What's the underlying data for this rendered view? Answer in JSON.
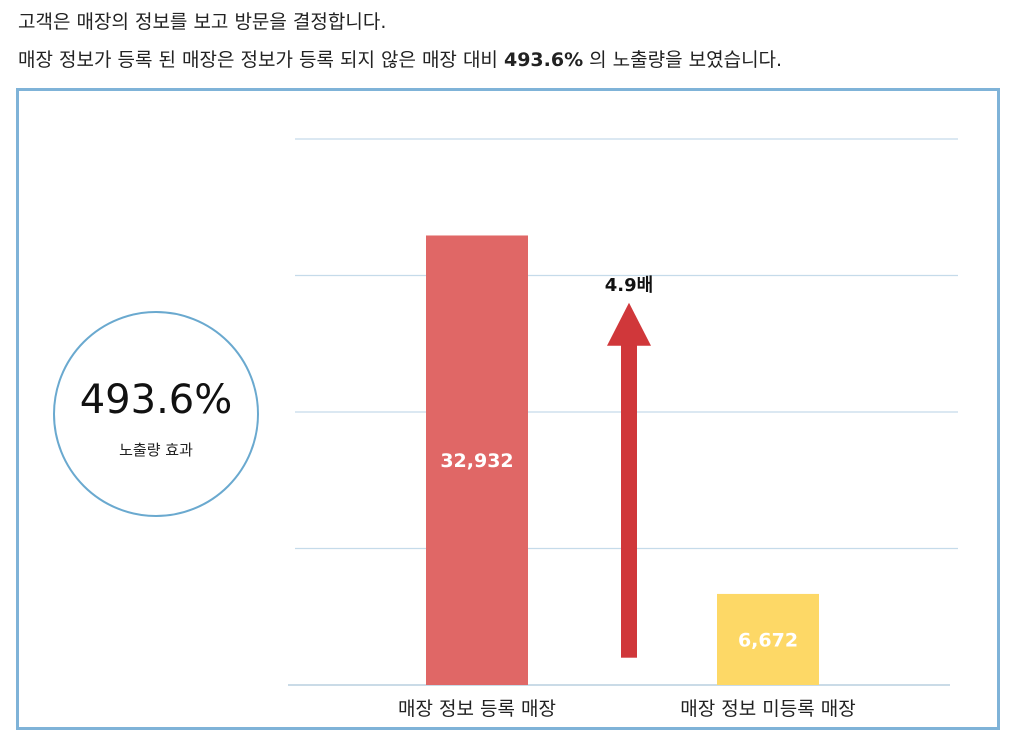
{
  "header": {
    "line1": "고객은 매장의 정보를 보고 방문을 결정합니다.",
    "line2_prefix": "매장 정보가 등록 된 매장은 정보가 등록 되지 않은 매장 대비 ",
    "line2_highlight": "493.6%",
    "line2_suffix": " 의 노출량을 보였습니다."
  },
  "badge": {
    "value": "493.6%",
    "label": "노출량 효과"
  },
  "chart_data": {
    "type": "bar",
    "categories": [
      "매장 정보 등록 매장",
      "매장 정보 미등록 매장"
    ],
    "values": [
      32932,
      6672
    ],
    "value_labels": [
      "32,932",
      "6,672"
    ],
    "colors": [
      "#e06766",
      "#fdd866"
    ],
    "ylim": [
      0,
      40000
    ],
    "grid": true,
    "annotation": {
      "text": "4.9배",
      "arrow_color": "#d0373a",
      "from_value": 2000,
      "to_value": 28000
    }
  }
}
